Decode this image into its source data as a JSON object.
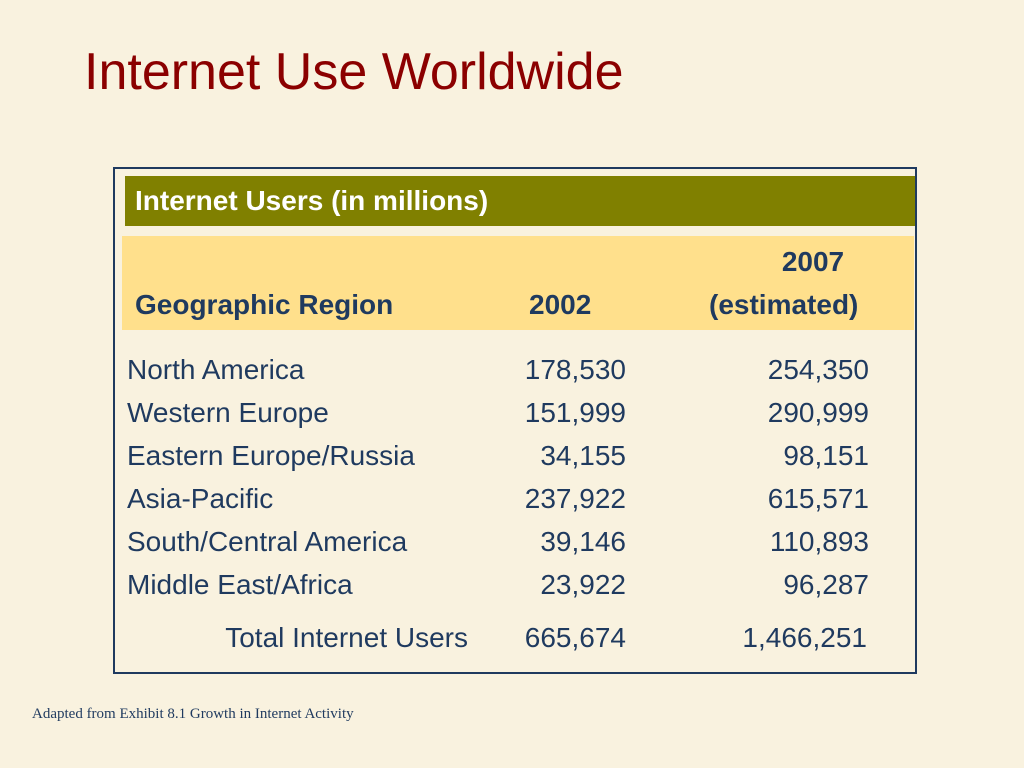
{
  "slide": {
    "title": "Internet Use Worldwide",
    "source_note": "Adapted from Exhibit 8.1 Growth in Internet Activity"
  },
  "table": {
    "banner": "Internet Users (in millions)",
    "headers": {
      "region": "Geographic Region",
      "year_2002": "2002",
      "year_2007": "2007",
      "year_2007_note": "(estimated)"
    },
    "rows": [
      {
        "region": "North America",
        "y2002": "178,530",
        "y2007": "254,350"
      },
      {
        "region": "Western Europe",
        "y2002": "151,999",
        "y2007": "290,999"
      },
      {
        "region": "Eastern Europe/Russia",
        "y2002": "34,155",
        "y2007": "98,151"
      },
      {
        "region": "Asia-Pacific",
        "y2002": "237,922",
        "y2007": "615,571"
      },
      {
        "region": "South/Central America",
        "y2002": "39,146",
        "y2007": "110,893"
      },
      {
        "region": "Middle East/Africa",
        "y2002": "23,922",
        "y2007": "96,287"
      }
    ],
    "total": {
      "label": "Total Internet Users",
      "y2002": "665,674",
      "y2007": "1,466,251"
    }
  },
  "colors": {
    "background": "#f9f2df",
    "title": "#8b0000",
    "banner": "#808000",
    "header_band": "#ffe08c",
    "text": "#1f3a5f"
  }
}
